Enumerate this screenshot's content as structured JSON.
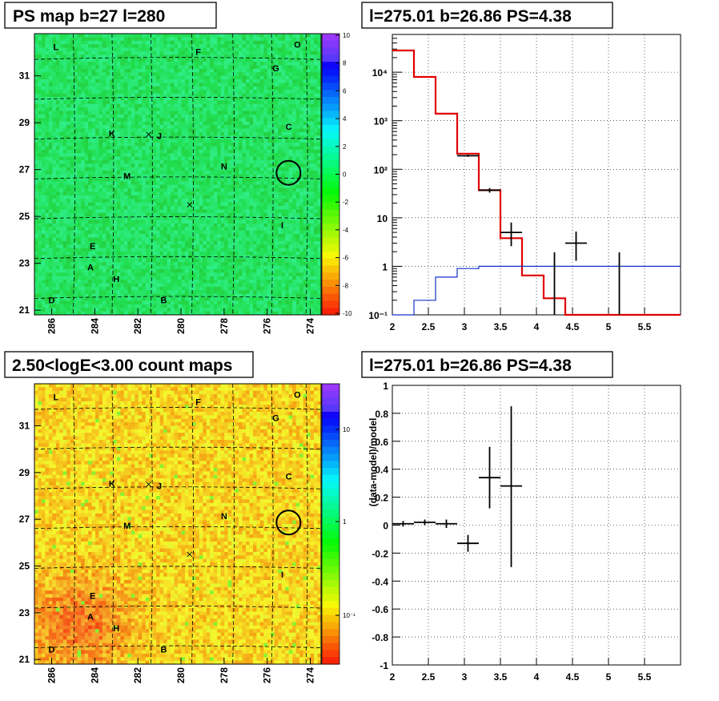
{
  "panels": {
    "tl": {
      "title": "PS map b=27 l=280"
    },
    "tr": {
      "title": "l=275.01 b=26.86 PS=4.38"
    },
    "bl": {
      "title": "2.50<logE<3.00 count maps"
    },
    "br": {
      "title": "l=275.01 b=26.86 PS=4.38"
    }
  },
  "colors": {
    "map_tl_bg": "#1ee85a",
    "map_bl_bg": "#f0b020",
    "model": "#e00000",
    "background_model": "#1530c8"
  },
  "sky_map": {
    "x_ticks": [
      "286",
      "284",
      "282",
      "280",
      "278",
      "276",
      "274"
    ],
    "y_ticks": [
      "31",
      "29",
      "27",
      "25",
      "23",
      "21"
    ],
    "source_labels": [
      "L",
      "F",
      "O",
      "G",
      "K",
      "J",
      "C",
      "M",
      "N",
      "I",
      "E",
      "A",
      "H",
      "D",
      "B"
    ],
    "cb_tl_ticks": [
      "10",
      "8",
      "6",
      "4",
      "2",
      "0",
      "-2",
      "-4",
      "-6",
      "-8",
      "-10"
    ],
    "cb_bl_ticks": [
      "10",
      "1",
      "10⁻¹"
    ]
  },
  "chart_data": [
    {
      "type": "heatmap",
      "title": "PS map b=27 l=280",
      "xlim": [
        286.8,
        273.5
      ],
      "ylim": [
        20.8,
        32.8
      ],
      "colorbar": {
        "min": -10,
        "max": 10
      },
      "marker": {
        "l": 275.01,
        "b": 26.86
      }
    },
    {
      "type": "line",
      "title": "l=275.01 b=26.86 PS=4.38",
      "ylog": true,
      "xlim": [
        2,
        6
      ],
      "ylim": [
        0.1,
        60000
      ],
      "x_ticks": [
        "2",
        "2.5",
        "3",
        "3.5",
        "4",
        "4.5",
        "5",
        "5.5"
      ],
      "y_ticks": [
        "10⁴",
        "10³",
        "10²",
        "10",
        "1",
        "10⁻¹"
      ],
      "series": [
        {
          "style": "step",
          "color": "#e00000",
          "edges": [
            2,
            2.3,
            2.6,
            2.9,
            3.2,
            3.5,
            3.8,
            4.1,
            4.4,
            6
          ],
          "values": [
            28000,
            8000,
            1400,
            210,
            37,
            3.8,
            0.65,
            0.22,
            0.1
          ]
        },
        {
          "style": "step",
          "color": "#1530c8",
          "edges": [
            2,
            2.3,
            2.6,
            2.9,
            3.2,
            6
          ],
          "values": [
            0.1,
            0.2,
            0.6,
            0.9,
            1.0
          ]
        },
        {
          "style": "errorbar",
          "color": "#000000",
          "points": [
            {
              "x": 3.05,
              "y": 190,
              "xerr": 0.15,
              "ylo": 180,
              "yhi": 200
            },
            {
              "x": 3.35,
              "y": 37,
              "xerr": 0.15,
              "ylo": 33,
              "yhi": 41
            },
            {
              "x": 3.65,
              "y": 5,
              "xerr": 0.15,
              "ylo": 2.6,
              "yhi": 8
            },
            {
              "x": 4.25,
              "y": 0.1,
              "xerr": 0,
              "ylo": 0.1,
              "yhi": 1.95
            },
            {
              "x": 4.55,
              "y": 3,
              "xerr": 0.15,
              "ylo": 1.3,
              "yhi": 5.2
            },
            {
              "x": 5.15,
              "y": 0.1,
              "xerr": 0,
              "ylo": 0.1,
              "yhi": 1.95
            }
          ]
        }
      ]
    },
    {
      "type": "heatmap",
      "title": "2.50<logE<3.00 count maps",
      "xlim": [
        286.8,
        273.5
      ],
      "ylim": [
        20.8,
        32.8
      ],
      "colorbar": {
        "log": true,
        "min": 0.03,
        "max": 30
      },
      "marker": {
        "l": 275.01,
        "b": 26.86
      }
    },
    {
      "type": "scatter",
      "title": "l=275.01 b=26.86 PS=4.38",
      "ylabel": "(data-model)/model",
      "xlim": [
        2,
        6
      ],
      "ylim": [
        -1,
        1
      ],
      "x_ticks": [
        "2",
        "2.5",
        "3",
        "3.5",
        "4",
        "4.5",
        "5",
        "5.5"
      ],
      "y_ticks": [
        "1",
        "0.8",
        "0.6",
        "0.4",
        "0.2",
        "0",
        "-0.2",
        "-0.4",
        "-0.6",
        "-0.8",
        "-1"
      ],
      "points": [
        {
          "x": 2.15,
          "y": 0.01,
          "xerr": 0.15,
          "ylo": -0.01,
          "yhi": 0.03
        },
        {
          "x": 2.45,
          "y": 0.02,
          "xerr": 0.15,
          "ylo": 0.0,
          "yhi": 0.04
        },
        {
          "x": 2.75,
          "y": 0.01,
          "xerr": 0.15,
          "ylo": -0.02,
          "yhi": 0.04
        },
        {
          "x": 3.05,
          "y": -0.13,
          "xerr": 0.15,
          "ylo": -0.19,
          "yhi": -0.07
        },
        {
          "x": 3.35,
          "y": 0.34,
          "xerr": 0.15,
          "ylo": 0.12,
          "yhi": 0.56
        },
        {
          "x": 3.65,
          "y": 0.28,
          "xerr": 0.15,
          "ylo": -0.3,
          "yhi": 0.85
        }
      ]
    }
  ]
}
